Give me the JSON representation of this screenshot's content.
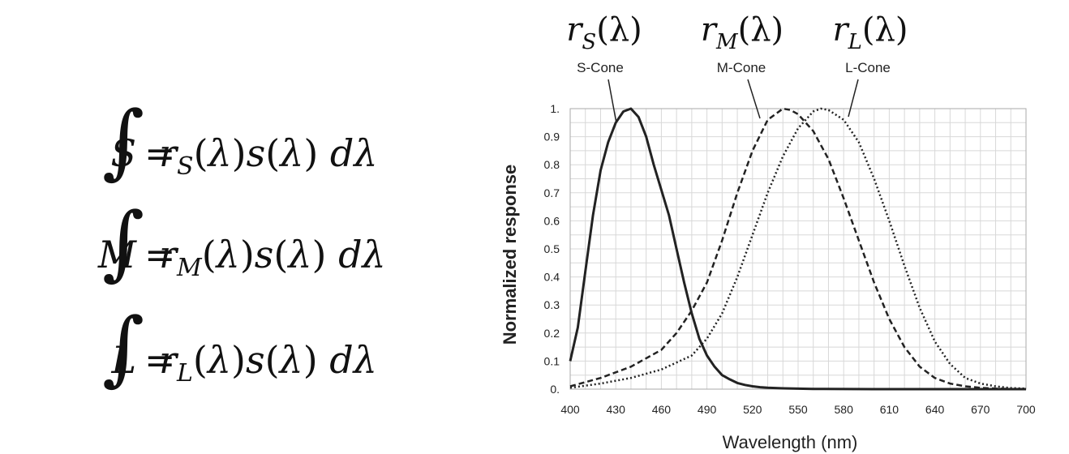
{
  "equations": [
    {
      "lhs": "S",
      "sub": "S"
    },
    {
      "lhs": "M",
      "sub": "M"
    },
    {
      "lhs": "L",
      "sub": "L"
    }
  ],
  "chart_data": {
    "type": "line",
    "title": "",
    "xlabel": "Wavelength (nm)",
    "ylabel": "Normalized response",
    "xlim": [
      400,
      700
    ],
    "ylim": [
      0,
      1
    ],
    "grid": true,
    "x_ticks": [
      400,
      430,
      460,
      490,
      520,
      550,
      580,
      610,
      640,
      670,
      700
    ],
    "y_ticks": [
      0,
      0.1,
      0.2,
      0.3,
      0.4,
      0.5,
      0.6,
      0.7,
      0.8,
      0.9,
      1
    ],
    "y_tick_labels": [
      "0.",
      "0.1",
      "0.2",
      "0.3",
      "0.4",
      "0.5",
      "0.6",
      "0.7",
      "0.8",
      "0.9",
      "1."
    ],
    "series": [
      {
        "name": "S-Cone",
        "function_label": "r_S(λ)",
        "func_base": "r",
        "func_sub": "S",
        "style": "solid",
        "x": [
          400,
          405,
          410,
          415,
          420,
          425,
          430,
          435,
          440,
          445,
          450,
          455,
          460,
          465,
          470,
          475,
          480,
          485,
          490,
          495,
          500,
          505,
          510,
          515,
          520,
          525,
          530,
          540,
          560,
          600,
          650,
          700
        ],
        "y": [
          0.1,
          0.22,
          0.42,
          0.62,
          0.78,
          0.88,
          0.95,
          0.99,
          1.0,
          0.97,
          0.9,
          0.8,
          0.71,
          0.62,
          0.5,
          0.38,
          0.27,
          0.18,
          0.12,
          0.08,
          0.05,
          0.035,
          0.022,
          0.015,
          0.01,
          0.007,
          0.005,
          0.003,
          0.001,
          0.0,
          0.0,
          0.0
        ]
      },
      {
        "name": "M-Cone",
        "function_label": "r_M(λ)",
        "func_base": "r",
        "func_sub": "M",
        "style": "dashed",
        "x": [
          400,
          420,
          440,
          460,
          470,
          480,
          490,
          500,
          510,
          520,
          530,
          540,
          545,
          550,
          560,
          570,
          580,
          590,
          600,
          610,
          620,
          630,
          640,
          650,
          660,
          670,
          680,
          690,
          700
        ],
        "y": [
          0.01,
          0.04,
          0.08,
          0.14,
          0.2,
          0.28,
          0.38,
          0.53,
          0.7,
          0.85,
          0.96,
          1.0,
          0.995,
          0.98,
          0.92,
          0.82,
          0.68,
          0.53,
          0.38,
          0.25,
          0.15,
          0.08,
          0.04,
          0.02,
          0.01,
          0.005,
          0.002,
          0.001,
          0.0
        ]
      },
      {
        "name": "L-Cone",
        "function_label": "r_L(λ)",
        "func_base": "r",
        "func_sub": "L",
        "style": "dotted",
        "x": [
          400,
          420,
          440,
          460,
          480,
          490,
          500,
          510,
          520,
          530,
          540,
          550,
          560,
          565,
          570,
          580,
          590,
          600,
          610,
          620,
          630,
          640,
          650,
          660,
          670,
          680,
          690,
          700
        ],
        "y": [
          0.005,
          0.02,
          0.04,
          0.07,
          0.12,
          0.18,
          0.27,
          0.4,
          0.55,
          0.7,
          0.83,
          0.93,
          0.99,
          1.0,
          0.995,
          0.96,
          0.88,
          0.75,
          0.6,
          0.44,
          0.29,
          0.17,
          0.09,
          0.04,
          0.02,
          0.01,
          0.004,
          0.002
        ]
      }
    ]
  }
}
